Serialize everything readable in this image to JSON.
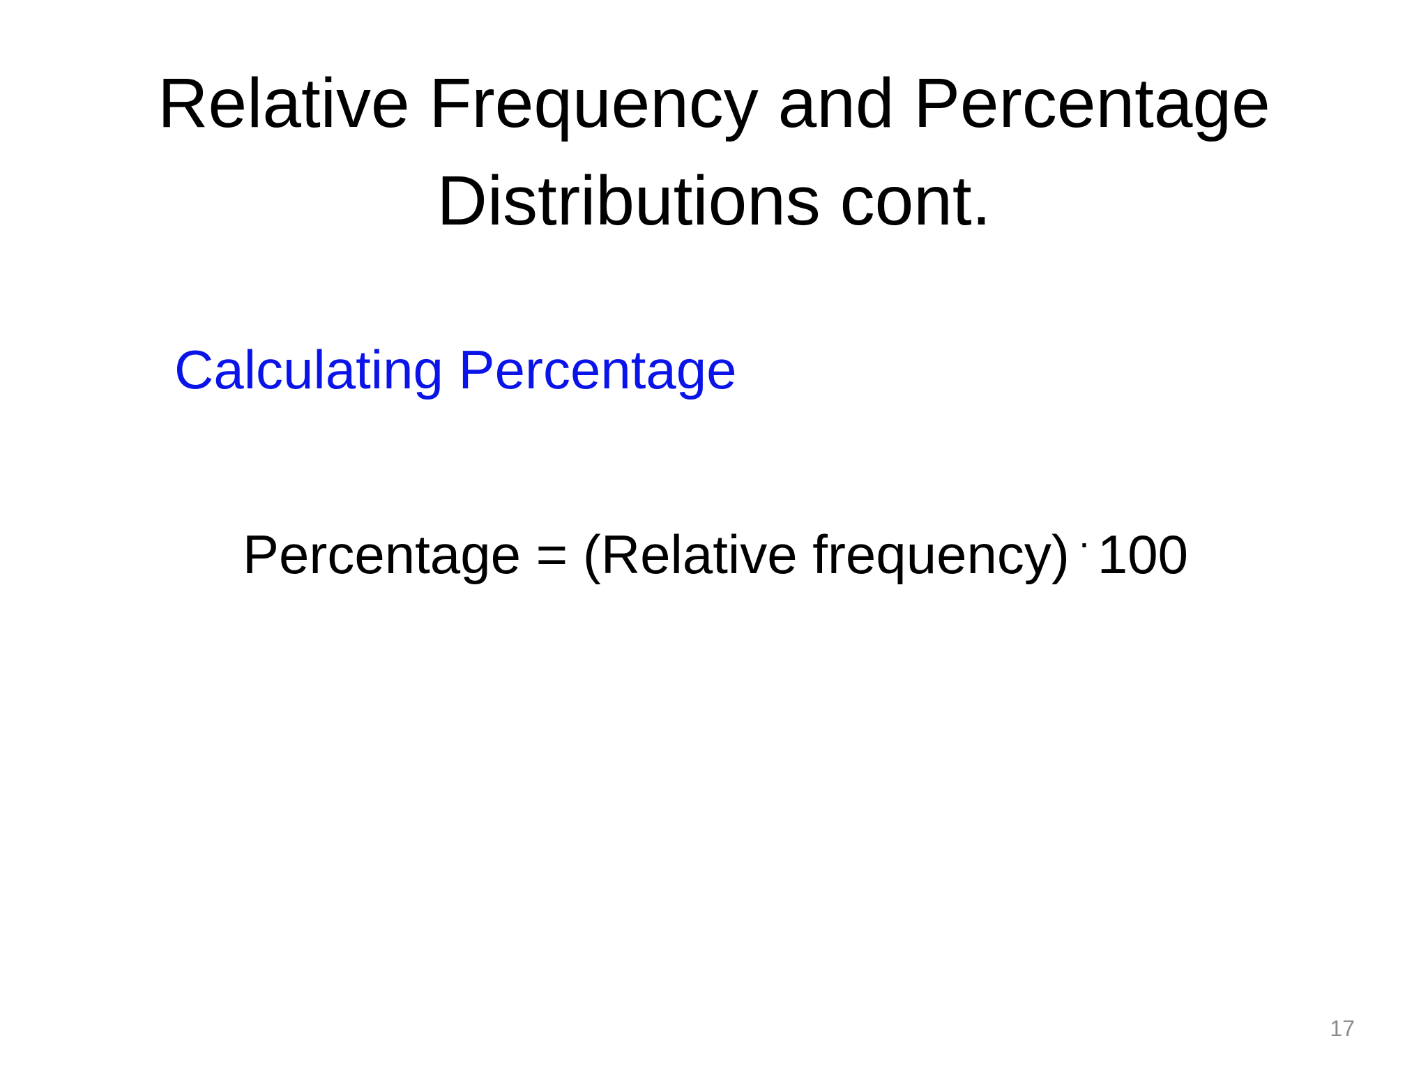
{
  "slide": {
    "title_line_1": "Relative Frequency and Percentage",
    "title_line_2": "Distributions cont.",
    "subheading": "Calculating Percentage",
    "formula": {
      "left": "Percentage = (Relative frequency)",
      "operator": "·",
      "right": "100"
    },
    "page_number": "17"
  },
  "colors": {
    "title": "#000000",
    "subheading": "#0a14e8",
    "formula": "#000000",
    "page_number": "#8a8a8a"
  }
}
